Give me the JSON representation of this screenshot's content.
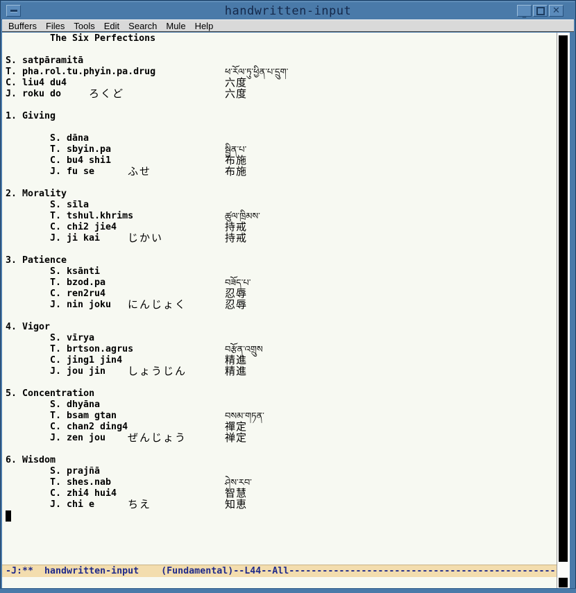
{
  "window": {
    "title": "handwritten-input",
    "buttons": {
      "menu_icon": "window-menu-dash",
      "minimize_glyph": "_",
      "maximize_icon": "square-outline",
      "close_glyph": "✕"
    }
  },
  "menubar": {
    "items": [
      "Buffers",
      "Files",
      "Tools",
      "Edit",
      "Search",
      "Mule",
      "Help"
    ]
  },
  "buffer": {
    "name": "handwritten-input",
    "cursor": {
      "row": 43,
      "col": 0
    },
    "lines": [
      {
        "row": 0,
        "col": 8,
        "text": "The Six Perfections"
      },
      {
        "row": 2,
        "col": 0,
        "text": "S. satpāramitā"
      },
      {
        "row": 3,
        "col": 0,
        "text": "T. pha.rol.tu.phyin.pa.drug",
        "script": "ཕ་རོལ་ཏུ་ཕྱིན་པ་དྲུག་",
        "kind": "tibetan"
      },
      {
        "row": 4,
        "col": 0,
        "text": "C. liu4 du4",
        "script": "六度",
        "kind": "cjk"
      },
      {
        "row": 5,
        "col": 0,
        "text": "J. roku do",
        "kana": "ろくど",
        "kana_col": 15,
        "script": "六度",
        "kind": "cjk"
      },
      {
        "row": 7,
        "col": 0,
        "text": "1. Giving"
      },
      {
        "row": 9,
        "col": 8,
        "text": "S. dāna"
      },
      {
        "row": 10,
        "col": 8,
        "text": "T. sbyin.pa",
        "script": "སྦྱིན་པ་",
        "kind": "tibetan"
      },
      {
        "row": 11,
        "col": 8,
        "text": "C. bu4 shi1",
        "script": "布施",
        "kind": "cjk"
      },
      {
        "row": 12,
        "col": 8,
        "text": "J. fu se",
        "kana": "ふせ",
        "kana_col": 22,
        "script": "布施",
        "kind": "cjk"
      },
      {
        "row": 14,
        "col": 0,
        "text": "2. Morality"
      },
      {
        "row": 15,
        "col": 8,
        "text": "S. sīla"
      },
      {
        "row": 16,
        "col": 8,
        "text": "T. tshul.khrims",
        "script": "ཚུལ་ཁྲིམས་",
        "kind": "tibetan"
      },
      {
        "row": 17,
        "col": 8,
        "text": "C. chi2 jie4",
        "script": "持戒",
        "kind": "cjk"
      },
      {
        "row": 18,
        "col": 8,
        "text": "J. ji kai",
        "kana": "じかい",
        "kana_col": 22,
        "script": "持戒",
        "kind": "cjk"
      },
      {
        "row": 20,
        "col": 0,
        "text": "3. Patience"
      },
      {
        "row": 21,
        "col": 8,
        "text": "S. ksānti"
      },
      {
        "row": 22,
        "col": 8,
        "text": "T. bzod.pa",
        "script": "བཟོད་པ་",
        "kind": "tibetan"
      },
      {
        "row": 23,
        "col": 8,
        "text": "C. ren2ru4",
        "script": "忍辱",
        "kind": "cjk"
      },
      {
        "row": 24,
        "col": 8,
        "text": "J. nin joku",
        "kana": "にんじょく",
        "kana_col": 22,
        "script": "忍辱",
        "kind": "cjk"
      },
      {
        "row": 26,
        "col": 0,
        "text": "4. Vigor"
      },
      {
        "row": 27,
        "col": 8,
        "text": "S. vīrya"
      },
      {
        "row": 28,
        "col": 8,
        "text": "T. brtson.agrus",
        "script": "བརྩོན་འགྲུས",
        "kind": "tibetan"
      },
      {
        "row": 29,
        "col": 8,
        "text": "C. jing1 jin4",
        "script": "精進",
        "kind": "cjk"
      },
      {
        "row": 30,
        "col": 8,
        "text": "J. jou jin",
        "kana": "しょうじん",
        "kana_col": 22,
        "script": "精進",
        "kind": "cjk"
      },
      {
        "row": 32,
        "col": 0,
        "text": "5. Concentration"
      },
      {
        "row": 33,
        "col": 8,
        "text": "S. dhyāna"
      },
      {
        "row": 34,
        "col": 8,
        "text": "T. bsam gtan",
        "script": "བསམ་གཏན་",
        "kind": "tibetan"
      },
      {
        "row": 35,
        "col": 8,
        "text": "C. chan2 ding4",
        "script": "禪定",
        "kind": "cjk"
      },
      {
        "row": 36,
        "col": 8,
        "text": "J. zen jou",
        "kana": "ぜんじょう",
        "kana_col": 22,
        "script": "禅定",
        "kind": "cjk"
      },
      {
        "row": 38,
        "col": 0,
        "text": "6. Wisdom"
      },
      {
        "row": 39,
        "col": 8,
        "text": "S. prajñā"
      },
      {
        "row": 40,
        "col": 8,
        "text": "T. shes.nab",
        "script": "ཤེས་རབ་",
        "kind": "tibetan"
      },
      {
        "row": 41,
        "col": 8,
        "text": "C. zhi4 hui4",
        "script": "智慧",
        "kind": "cjk"
      },
      {
        "row": 42,
        "col": 8,
        "text": "J. chi e",
        "kana": "ちえ",
        "kana_col": 22,
        "script": "知恵",
        "kind": "cjk"
      }
    ]
  },
  "modeline": {
    "text": "-J:**  handwritten-input    (Fundamental)--L44--All------------------------------------------------",
    "coding_flag": "-J:**",
    "buffer_name": "handwritten-input",
    "major_mode": "Fundamental",
    "line_indicator": "L44",
    "position_indicator": "All"
  },
  "colors": {
    "frame_blue": "#4a7aa9",
    "frame_dark": "#27517d",
    "menubar_bg": "#d9d9d9",
    "buffer_bg": "#f7f9f2",
    "modeline_bg": "#f3ddae",
    "modeline_text": "#1f2a8a",
    "scroll_thumb": "#000000",
    "text": "#000000"
  }
}
